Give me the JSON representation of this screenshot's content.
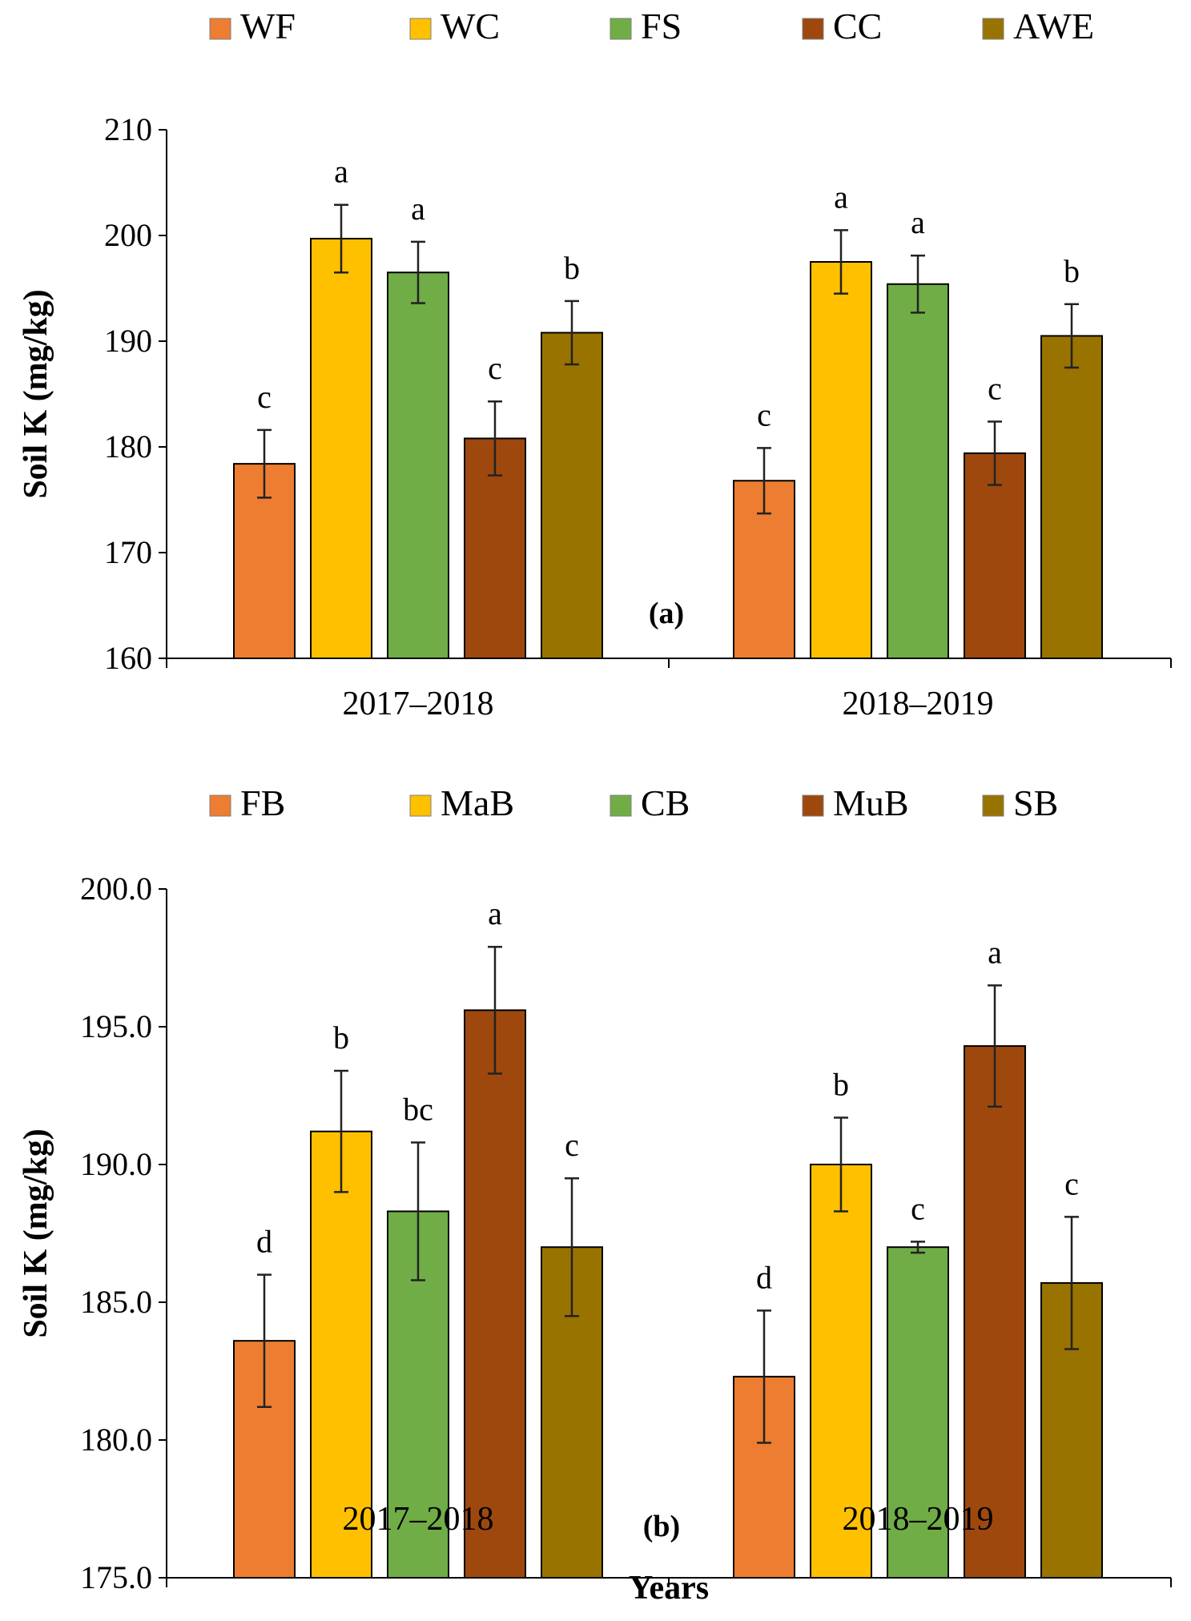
{
  "chart_data": [
    {
      "type": "bar",
      "panel_label": "(a)",
      "legend_position": "top",
      "categories": [
        "2017–2018",
        "2018–2019"
      ],
      "series": [
        {
          "name": "WF",
          "color": "#ED7D31",
          "values": [
            178.4,
            176.8
          ],
          "errors": [
            3.2,
            3.1
          ],
          "letters": [
            "c",
            "c"
          ]
        },
        {
          "name": "WC",
          "color": "#FFC000",
          "values": [
            199.7,
            197.5
          ],
          "errors": [
            3.2,
            3.0
          ],
          "letters": [
            "a",
            "a"
          ]
        },
        {
          "name": "FS",
          "color": "#70AD47",
          "values": [
            196.5,
            195.4
          ],
          "errors": [
            2.9,
            2.7
          ],
          "letters": [
            "a",
            "a"
          ]
        },
        {
          "name": "CC",
          "color": "#9E480E",
          "values": [
            180.8,
            179.4
          ],
          "errors": [
            3.5,
            3.0
          ],
          "letters": [
            "c",
            "c"
          ]
        },
        {
          "name": "AWE",
          "color": "#997300",
          "values": [
            190.8,
            190.5
          ],
          "errors": [
            3.0,
            3.0
          ],
          "letters": [
            "b",
            "b"
          ]
        }
      ],
      "ylim": [
        160,
        210
      ],
      "yticks": [
        "160",
        "170",
        "180",
        "190",
        "200",
        "210"
      ],
      "ylabel": "Soil K (mg/kg)",
      "xlabel": ""
    },
    {
      "type": "bar",
      "panel_label": "(b)",
      "legend_position": "top",
      "categories": [
        "2017–2018",
        "2018–2019"
      ],
      "series": [
        {
          "name": "FB",
          "color": "#ED7D31",
          "values": [
            183.6,
            182.3
          ],
          "errors": [
            2.4,
            2.4
          ],
          "letters": [
            "d",
            "d"
          ]
        },
        {
          "name": "MaB",
          "color": "#FFC000",
          "values": [
            191.2,
            190.0
          ],
          "errors": [
            2.2,
            1.7
          ],
          "letters": [
            "b",
            "b"
          ]
        },
        {
          "name": "CB",
          "color": "#70AD47",
          "values": [
            188.3,
            187.0
          ],
          "errors": [
            2.5,
            0.2
          ],
          "letters": [
            "bc",
            "c"
          ]
        },
        {
          "name": "MuB",
          "color": "#9E480E",
          "values": [
            195.6,
            194.3
          ],
          "errors": [
            2.3,
            2.2
          ],
          "letters": [
            "a",
            "a"
          ]
        },
        {
          "name": "SB",
          "color": "#997300",
          "values": [
            187.0,
            185.7
          ],
          "errors": [
            2.5,
            2.4
          ],
          "letters": [
            "c",
            "c"
          ]
        }
      ],
      "ylim": [
        175,
        200
      ],
      "yticks": [
        "175.0",
        "180.0",
        "185.0",
        "190.0",
        "195.0",
        "200.0"
      ],
      "ylabel": "Soil K (mg/kg)",
      "xlabel": "Years"
    }
  ]
}
